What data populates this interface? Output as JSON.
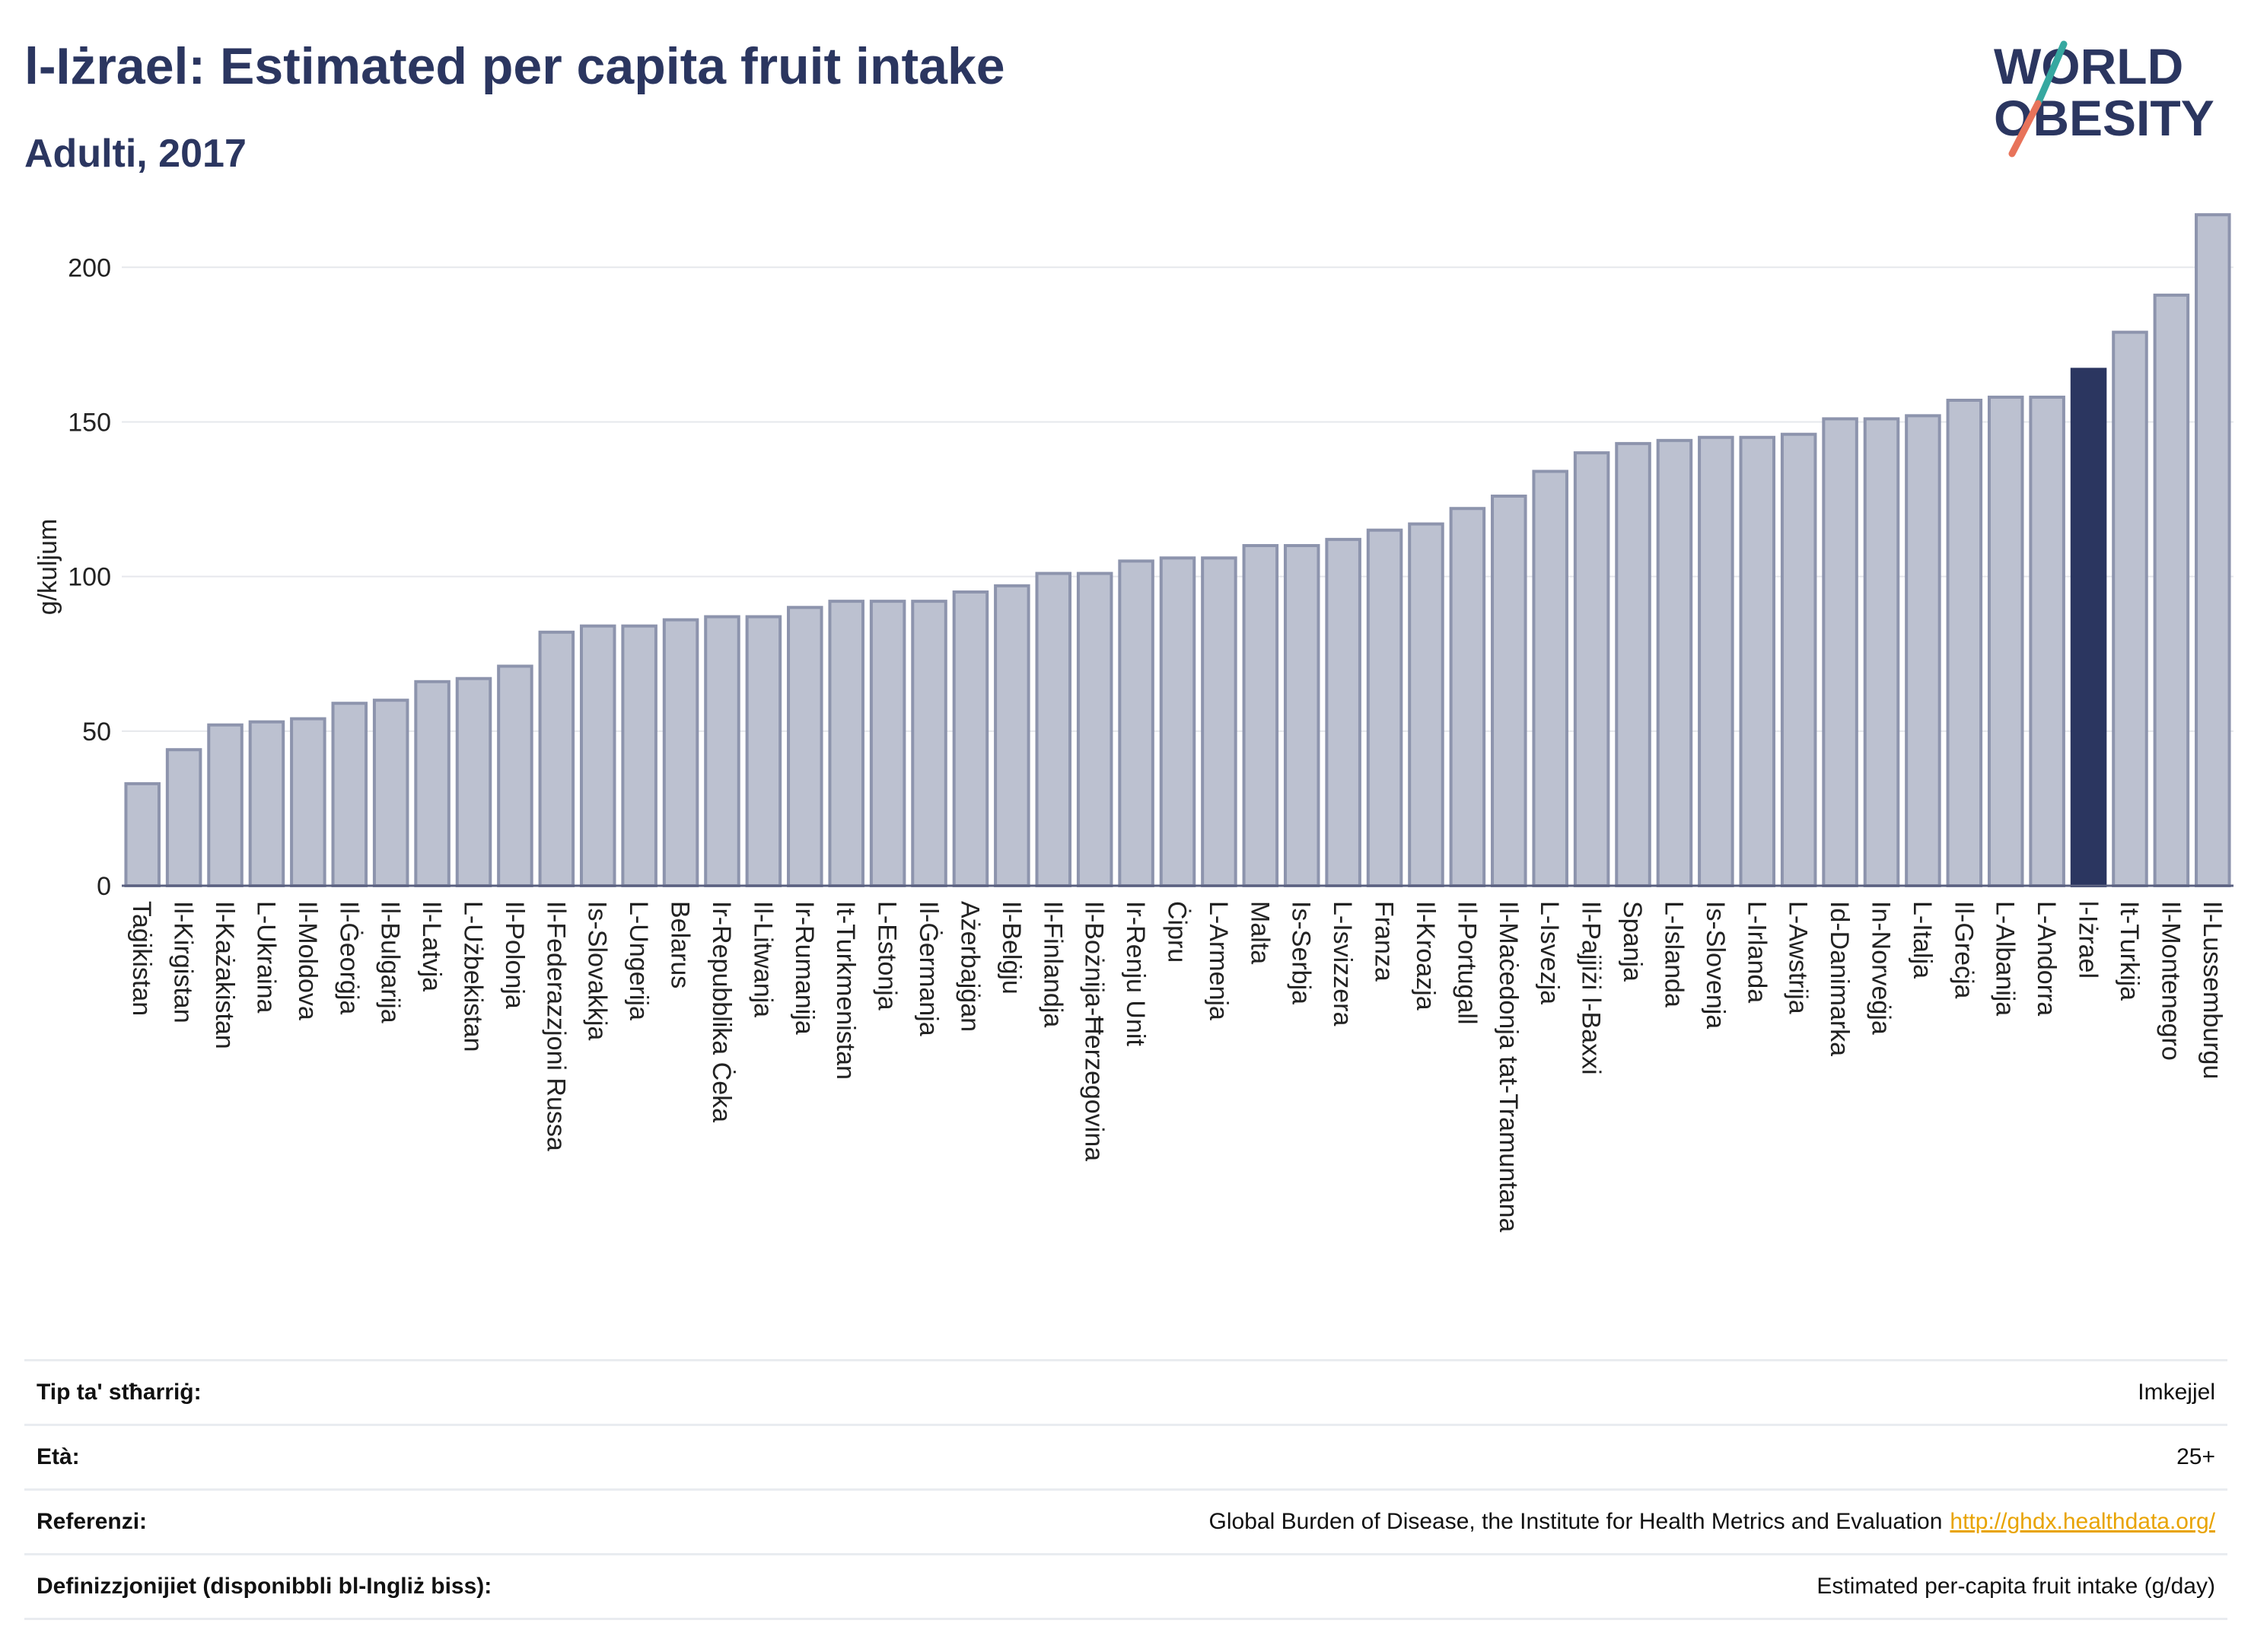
{
  "header": {
    "title": "l-Iżrael: Estimated per capita fruit intake",
    "subtitle": "Adulti, 2017"
  },
  "logo": {
    "line1": "WORLD",
    "line2": "OBESITY",
    "colors": {
      "text": "#2b3660",
      "slash_teal": "#36a8a0",
      "slash_coral": "#e8735a"
    }
  },
  "colors": {
    "bar": "#bcc1d0",
    "bar_stroke": "#8d94ad",
    "highlight": "#2b3660",
    "grid": "#e6e8ec",
    "axis": "#5a6080"
  },
  "chart_data": {
    "type": "bar",
    "ylabel": "g/kuljum",
    "ylim": [
      0,
      220
    ],
    "yticks": [
      0,
      50,
      100,
      150,
      200
    ],
    "grid": true,
    "highlight": "l-Iżrael",
    "categories": [
      "Taġikistan",
      "Il-Kirgistan",
      "Il-Każakistan",
      "L-Ukraina",
      "Il-Moldova",
      "Il-Ġeorġja",
      "Il-Bulgarija",
      "Il-Latvja",
      "L-Użbekistan",
      "Il-Polonja",
      "Il-Federazzjoni Russa",
      "Is-Slovakkja",
      "L-Ungerija",
      "Belarus",
      "Ir-Repubblika Ċeka",
      "Il-Litwanja",
      "Ir-Rumanija",
      "It-Turkmenistan",
      "L-Estonja",
      "Il-Ġermanja",
      "Ażerbajġan",
      "Il-Belġju",
      "Il-Finlandja",
      "Il-Bożnija-Ħerzegovina",
      "Ir-Renju Unit",
      "Ċipru",
      "L-Armenja",
      "Malta",
      "Is-Serbja",
      "L-Isvizzera",
      "Franza",
      "Il-Kroazja",
      "Il-Portugall",
      "Il-Maċedonja tat-Tramuntana",
      "L-Isvezja",
      "Il-Pajjiżi l-Baxxi",
      "Spanja",
      "L-Islanda",
      "Is-Slovenja",
      "L-Irlanda",
      "L-Awstrija",
      "Id-Danimarka",
      "In-Norveġja",
      "L-Italja",
      "Il-Greċja",
      "L-Albanija",
      "L-Andorra",
      "l-Iżrael",
      "It-Turkija",
      "Il-Montenegro",
      "Il-Lussemburgu"
    ],
    "values": [
      33,
      44,
      52,
      53,
      54,
      59,
      60,
      66,
      67,
      71,
      82,
      84,
      84,
      86,
      87,
      87,
      90,
      92,
      92,
      92,
      95,
      97,
      101,
      101,
      105,
      106,
      106,
      110,
      110,
      112,
      115,
      117,
      122,
      126,
      134,
      140,
      143,
      144,
      145,
      145,
      146,
      151,
      151,
      152,
      157,
      158,
      158,
      167,
      179,
      191,
      217
    ]
  },
  "info_table": [
    {
      "key": "Tip ta' stħarriġ:",
      "value": "Imkejjel",
      "link": ""
    },
    {
      "key": "Età:",
      "value": "25+",
      "link": ""
    },
    {
      "key": "Referenzi:",
      "value": "Global Burden of Disease, the Institute for Health Metrics and Evaluation",
      "link": "http://ghdx.healthdata.org/"
    },
    {
      "key": "Definizzjonijiet (disponibbli bl-Ingliż biss):",
      "value": "Estimated per-capita fruit intake (g/day)",
      "link": ""
    }
  ]
}
